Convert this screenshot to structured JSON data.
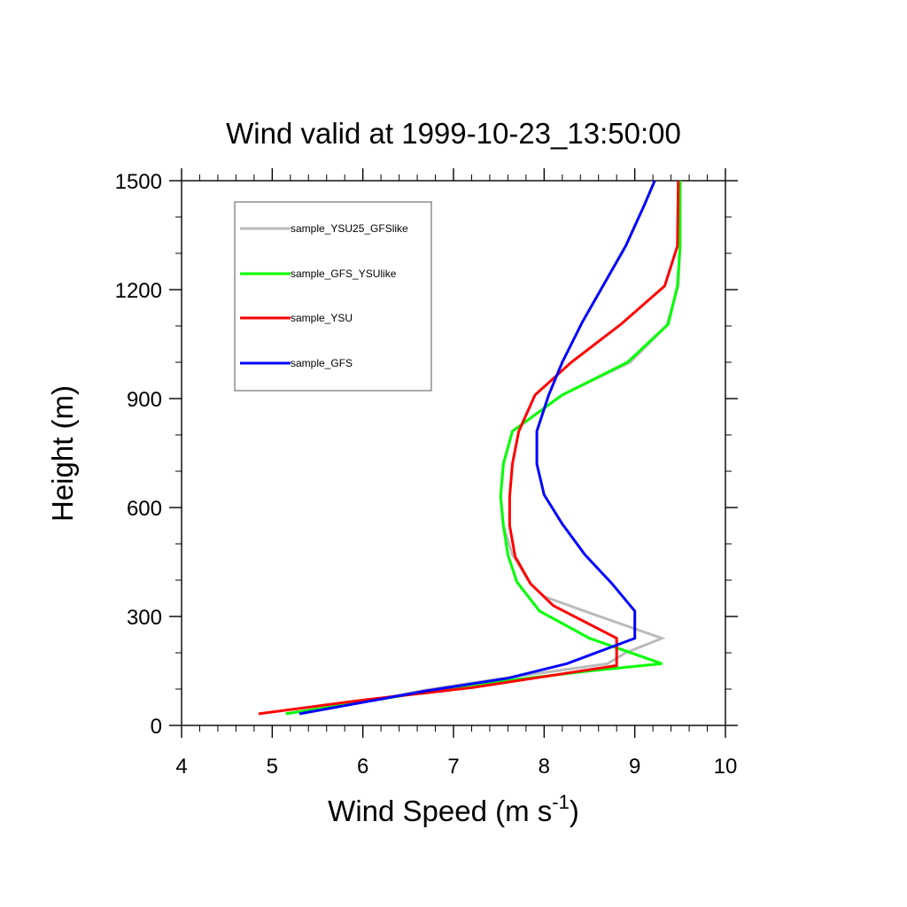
{
  "chart_data": {
    "type": "line",
    "title": "Wind valid at 1999-10-23_13:50:00",
    "xlabel": {
      "main": "Wind Speed (m s",
      "sup": "-1",
      "tail": ")"
    },
    "ylabel": "Height (m)",
    "xlim": [
      4,
      10
    ],
    "ylim": [
      0,
      1500
    ],
    "xticks": [
      4,
      5,
      6,
      7,
      8,
      9,
      10
    ],
    "yticks": [
      0,
      300,
      600,
      900,
      1200,
      1500
    ],
    "xtick_labels": [
      "4",
      "5",
      "6",
      "7",
      "8",
      "9",
      "10"
    ],
    "ytick_labels": [
      "0",
      "300",
      "600",
      "900",
      "1200",
      "1500"
    ],
    "grid": false,
    "legend_position": "top-left",
    "series": [
      {
        "name": "sample_YSU25_GFSlike",
        "color": "#bbbbbb",
        "points": [
          [
            5.3,
            32
          ],
          [
            6.7,
            98
          ],
          [
            7.5,
            128
          ],
          [
            8.7,
            170
          ],
          [
            8.9,
            200
          ],
          [
            9.3,
            240
          ],
          [
            8.5,
            310
          ],
          [
            8.0,
            355
          ],
          [
            7.85,
            390
          ],
          [
            7.65,
            470
          ],
          [
            7.55,
            550
          ],
          [
            7.52,
            630
          ],
          [
            7.55,
            720
          ],
          [
            7.65,
            810
          ],
          [
            8.2,
            910
          ],
          [
            8.95,
            1000
          ],
          [
            9.35,
            1100
          ],
          [
            9.48,
            1210
          ],
          [
            9.5,
            1320
          ],
          [
            9.5,
            1500
          ]
        ]
      },
      {
        "name": "sample_GFS_YSUlike",
        "color": "#00ff00",
        "points": [
          [
            5.15,
            32
          ],
          [
            6.0,
            65
          ],
          [
            7.2,
            112
          ],
          [
            8.5,
            150
          ],
          [
            9.3,
            170
          ],
          [
            8.5,
            240
          ],
          [
            7.95,
            315
          ],
          [
            7.7,
            395
          ],
          [
            7.6,
            470
          ],
          [
            7.55,
            550
          ],
          [
            7.52,
            630
          ],
          [
            7.55,
            720
          ],
          [
            7.65,
            810
          ],
          [
            8.2,
            910
          ],
          [
            8.92,
            1000
          ],
          [
            9.37,
            1105
          ],
          [
            9.47,
            1210
          ],
          [
            9.5,
            1320
          ],
          [
            9.5,
            1500
          ]
        ]
      },
      {
        "name": "sample_YSU",
        "color": "#ff0000",
        "points": [
          [
            4.85,
            32
          ],
          [
            6.0,
            70
          ],
          [
            7.2,
            104
          ],
          [
            8.8,
            165
          ],
          [
            8.8,
            240
          ],
          [
            8.1,
            330
          ],
          [
            7.85,
            390
          ],
          [
            7.68,
            465
          ],
          [
            7.62,
            550
          ],
          [
            7.62,
            630
          ],
          [
            7.65,
            720
          ],
          [
            7.72,
            810
          ],
          [
            7.9,
            910
          ],
          [
            8.3,
            1000
          ],
          [
            8.85,
            1105
          ],
          [
            9.33,
            1210
          ],
          [
            9.47,
            1320
          ],
          [
            9.48,
            1500
          ]
        ]
      },
      {
        "name": "sample_GFS",
        "color": "#0000ff",
        "points": [
          [
            5.3,
            32
          ],
          [
            6.7,
            95
          ],
          [
            7.6,
            130
          ],
          [
            8.25,
            170
          ],
          [
            9.0,
            240
          ],
          [
            9.0,
            315
          ],
          [
            8.75,
            390
          ],
          [
            8.45,
            470
          ],
          [
            8.2,
            555
          ],
          [
            8.0,
            635
          ],
          [
            7.92,
            720
          ],
          [
            7.92,
            810
          ],
          [
            8.05,
            910
          ],
          [
            8.2,
            1000
          ],
          [
            8.42,
            1110
          ],
          [
            8.9,
            1320
          ],
          [
            9.1,
            1430
          ],
          [
            9.22,
            1500
          ]
        ]
      }
    ]
  }
}
